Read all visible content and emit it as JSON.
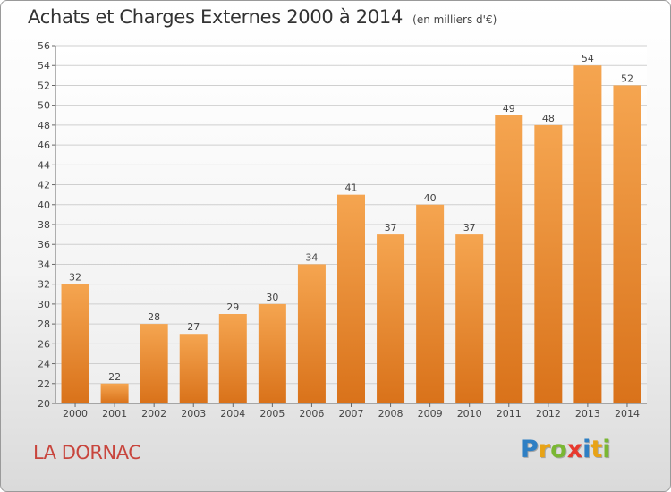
{
  "title": "Achats et Charges Externes 2000 à 2014",
  "subtitle": "(en milliers d'€)",
  "commune": "LA DORNAC",
  "brand": {
    "letters": [
      "P",
      "r",
      "o",
      "x",
      "i",
      "t",
      "i"
    ],
    "colors": [
      "#2e7fc4",
      "#e8a316",
      "#7ab733",
      "#e8392e",
      "#2e7fc4",
      "#e8a316",
      "#7ab733"
    ]
  },
  "chart_data": {
    "type": "bar",
    "title": "Achats et Charges Externes 2000 à 2014",
    "subtitle": "(en milliers d'€)",
    "categories": [
      "2000",
      "2001",
      "2002",
      "2003",
      "2004",
      "2005",
      "2006",
      "2007",
      "2008",
      "2009",
      "2010",
      "2011",
      "2012",
      "2013",
      "2014"
    ],
    "values": [
      32,
      22,
      28,
      27,
      29,
      30,
      34,
      41,
      37,
      40,
      37,
      49,
      48,
      54,
      52
    ],
    "ylim": [
      20,
      56
    ],
    "yticks": [
      20,
      22,
      24,
      26,
      28,
      30,
      32,
      34,
      36,
      38,
      40,
      42,
      44,
      46,
      48,
      50,
      52,
      54,
      56
    ],
    "grid": true,
    "bar_color_top": "#f5a550",
    "bar_color_bottom": "#d9721a"
  }
}
